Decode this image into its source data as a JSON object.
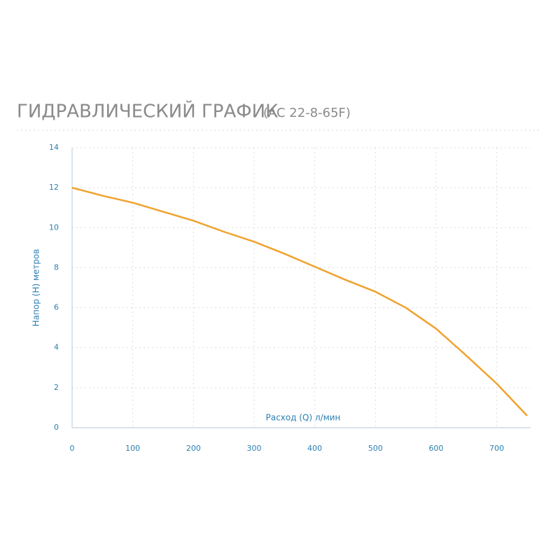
{
  "chart_data": {
    "type": "line",
    "title": "ГИДРАВЛИЧЕСКИЙ ГРАФИК",
    "subtitle": "(AC 22-8-65F)",
    "x_label": "Расход (Q) л/мин",
    "y_label": "Напор (Н) метров",
    "x": [
      0,
      50,
      100,
      150,
      200,
      250,
      300,
      350,
      400,
      450,
      500,
      550,
      600,
      650,
      700,
      750
    ],
    "series": [
      {
        "color": "#f0a22e",
        "values": [
          12,
          11.6,
          11.25,
          10.8,
          10.35,
          9.8,
          9.3,
          8.7,
          8.05,
          7.4,
          6.8,
          6.0,
          4.95,
          3.6,
          2.2,
          0.6
        ]
      }
    ],
    "xlim": [
      0,
      750
    ],
    "xticks": [
      0,
      100,
      200,
      300,
      400,
      500,
      600,
      700
    ],
    "ylim": [
      0,
      14
    ],
    "yticks": [
      0,
      2,
      4,
      6,
      8,
      10,
      12,
      14
    ],
    "grid": true
  }
}
